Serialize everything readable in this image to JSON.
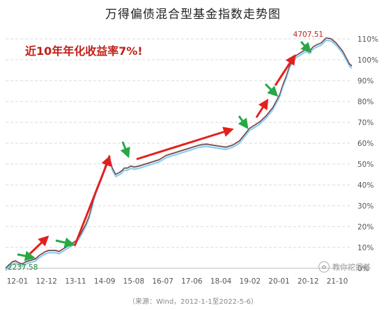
{
  "chart_data": {
    "type": "line",
    "title": "万得偏债混合型基金指数走势图",
    "headline": "近10年年化收益率7%!",
    "source": "（来源：Wind，2012-1-1至2022-5-6）",
    "xlabel": "",
    "ylabel": "",
    "x_ticks": [
      "12-01",
      "12-12",
      "13-11",
      "14-09",
      "15-08",
      "16-07",
      "17-06",
      "18-04",
      "19-02",
      "20-01",
      "20-12",
      "21-10"
    ],
    "y_ticks": [
      "0%",
      "10%",
      "20%",
      "30%",
      "40%",
      "50%",
      "60%",
      "70%",
      "80%",
      "90%",
      "100%",
      "110%"
    ],
    "ylim": [
      0,
      112
    ],
    "xlim": [
      2012.0,
      2022.37
    ],
    "grid": true,
    "legend": "none",
    "annotations": [
      {
        "text": "2237.58",
        "x": 2012.0,
        "y": 0
      },
      {
        "text": "4707.51",
        "x": 2021.6,
        "y": 110.4
      }
    ],
    "series": [
      {
        "x": [
          2012.0,
          2012.1,
          2012.2,
          2012.3,
          2012.4,
          2012.5,
          2012.6,
          2012.7,
          2012.8,
          2012.9,
          2013.0,
          2013.1,
          2013.2,
          2013.3,
          2013.4,
          2013.5,
          2013.6,
          2013.7,
          2013.8,
          2013.9,
          2014.0,
          2014.1,
          2014.2,
          2014.3,
          2014.4,
          2014.5,
          2014.6,
          2014.7,
          2014.8,
          2014.9,
          2015.0,
          2015.1,
          2015.2,
          2015.3,
          2015.42,
          2015.5,
          2015.55,
          2015.65,
          2015.75,
          2015.85,
          2016.0,
          2016.2,
          2016.4,
          2016.6,
          2016.8,
          2017.0,
          2017.2,
          2017.4,
          2017.6,
          2017.8,
          2018.0,
          2018.2,
          2018.4,
          2018.6,
          2018.8,
          2019.0,
          2019.1,
          2019.2,
          2019.3,
          2019.4,
          2019.6,
          2019.8,
          2020.0,
          2020.1,
          2020.2,
          2020.3,
          2020.4,
          2020.5,
          2020.6,
          2020.7,
          2020.8,
          2020.9,
          2021.0,
          2021.1,
          2021.2,
          2021.3,
          2021.45,
          2021.6,
          2021.75,
          2021.9,
          2022.0,
          2022.1,
          2022.2,
          2022.3,
          2022.37
        ],
        "values": [
          0,
          1.5,
          3,
          3.5,
          2.5,
          2,
          3,
          3.5,
          4,
          4.5,
          6,
          7,
          8,
          8.5,
          8.5,
          8.5,
          8,
          9,
          10,
          11,
          12,
          13,
          15,
          18,
          21,
          25,
          31,
          37,
          41,
          45,
          50,
          54,
          48,
          45,
          46,
          47,
          48,
          48,
          49,
          48.5,
          49,
          50,
          51,
          52,
          54,
          55,
          56,
          57,
          58,
          59,
          59.5,
          59,
          58.5,
          58,
          59,
          61,
          63,
          65,
          67,
          68,
          70,
          73,
          77,
          80,
          83,
          88,
          92,
          97,
          100,
          102,
          103,
          104,
          105,
          104,
          106,
          107,
          108,
          110.4,
          110,
          108,
          106,
          104,
          101,
          98,
          97
        ]
      }
    ]
  },
  "watermark": "教你挖掘基"
}
